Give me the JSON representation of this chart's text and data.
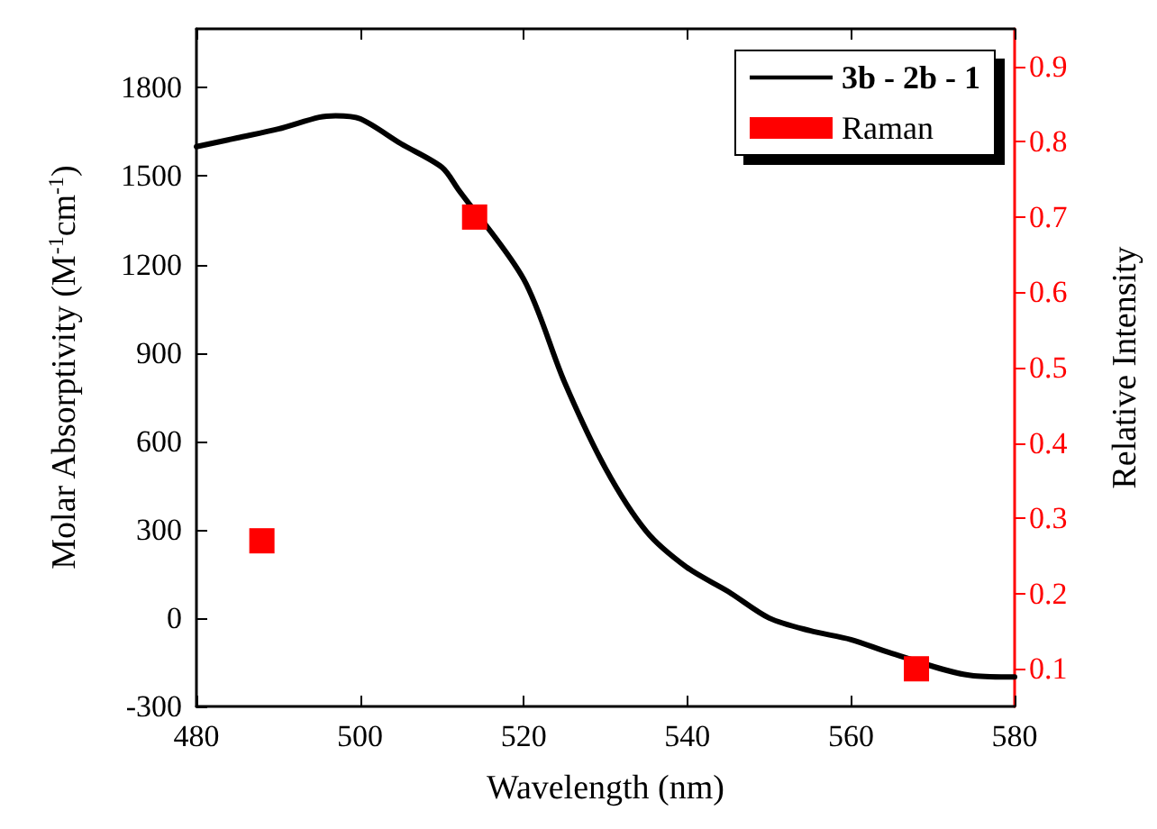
{
  "chart_data": {
    "type": "line",
    "xlabel": "Wavelength (nm)",
    "ylabel": "Molar Absorptivity (M$^{-1}$cm$^{-1}$)",
    "y2label": "Relative Intensity",
    "xlim": [
      480,
      580
    ],
    "xticks": [
      480,
      500,
      520,
      540,
      560,
      580
    ],
    "ylim": [
      -300,
      2000
    ],
    "yticks": [
      -300,
      0,
      300,
      600,
      900,
      1200,
      1500,
      1800
    ],
    "y2lim": [
      0.05,
      0.95
    ],
    "y2ticks": [
      0.1,
      0.2,
      0.3,
      0.4,
      0.5,
      0.6,
      0.7,
      0.8,
      0.9
    ],
    "grid": false,
    "legend": "top right",
    "series": [
      {
        "name": "3b - 2b - 1",
        "color": "#000000",
        "marker": "none",
        "line_style": "solid",
        "x": [
          480,
          485,
          490,
          495,
          497,
          500,
          505,
          510,
          512,
          520,
          525,
          530,
          535,
          540,
          545,
          550,
          555,
          560,
          565,
          575,
          580
        ],
        "values": [
          1600,
          1630,
          1660,
          1700,
          1705,
          1695,
          1610,
          1530,
          1455,
          1150,
          800,
          508,
          294,
          171,
          90,
          0,
          -43,
          -73,
          -120,
          -196,
          -200
        ]
      },
      {
        "name": "Raman",
        "type": "scatter",
        "axis": "y2",
        "color": "#ff0000",
        "marker": "square",
        "x": [
          488,
          514,
          568
        ],
        "values": [
          0.27,
          0.7,
          0.1
        ]
      }
    ]
  }
}
